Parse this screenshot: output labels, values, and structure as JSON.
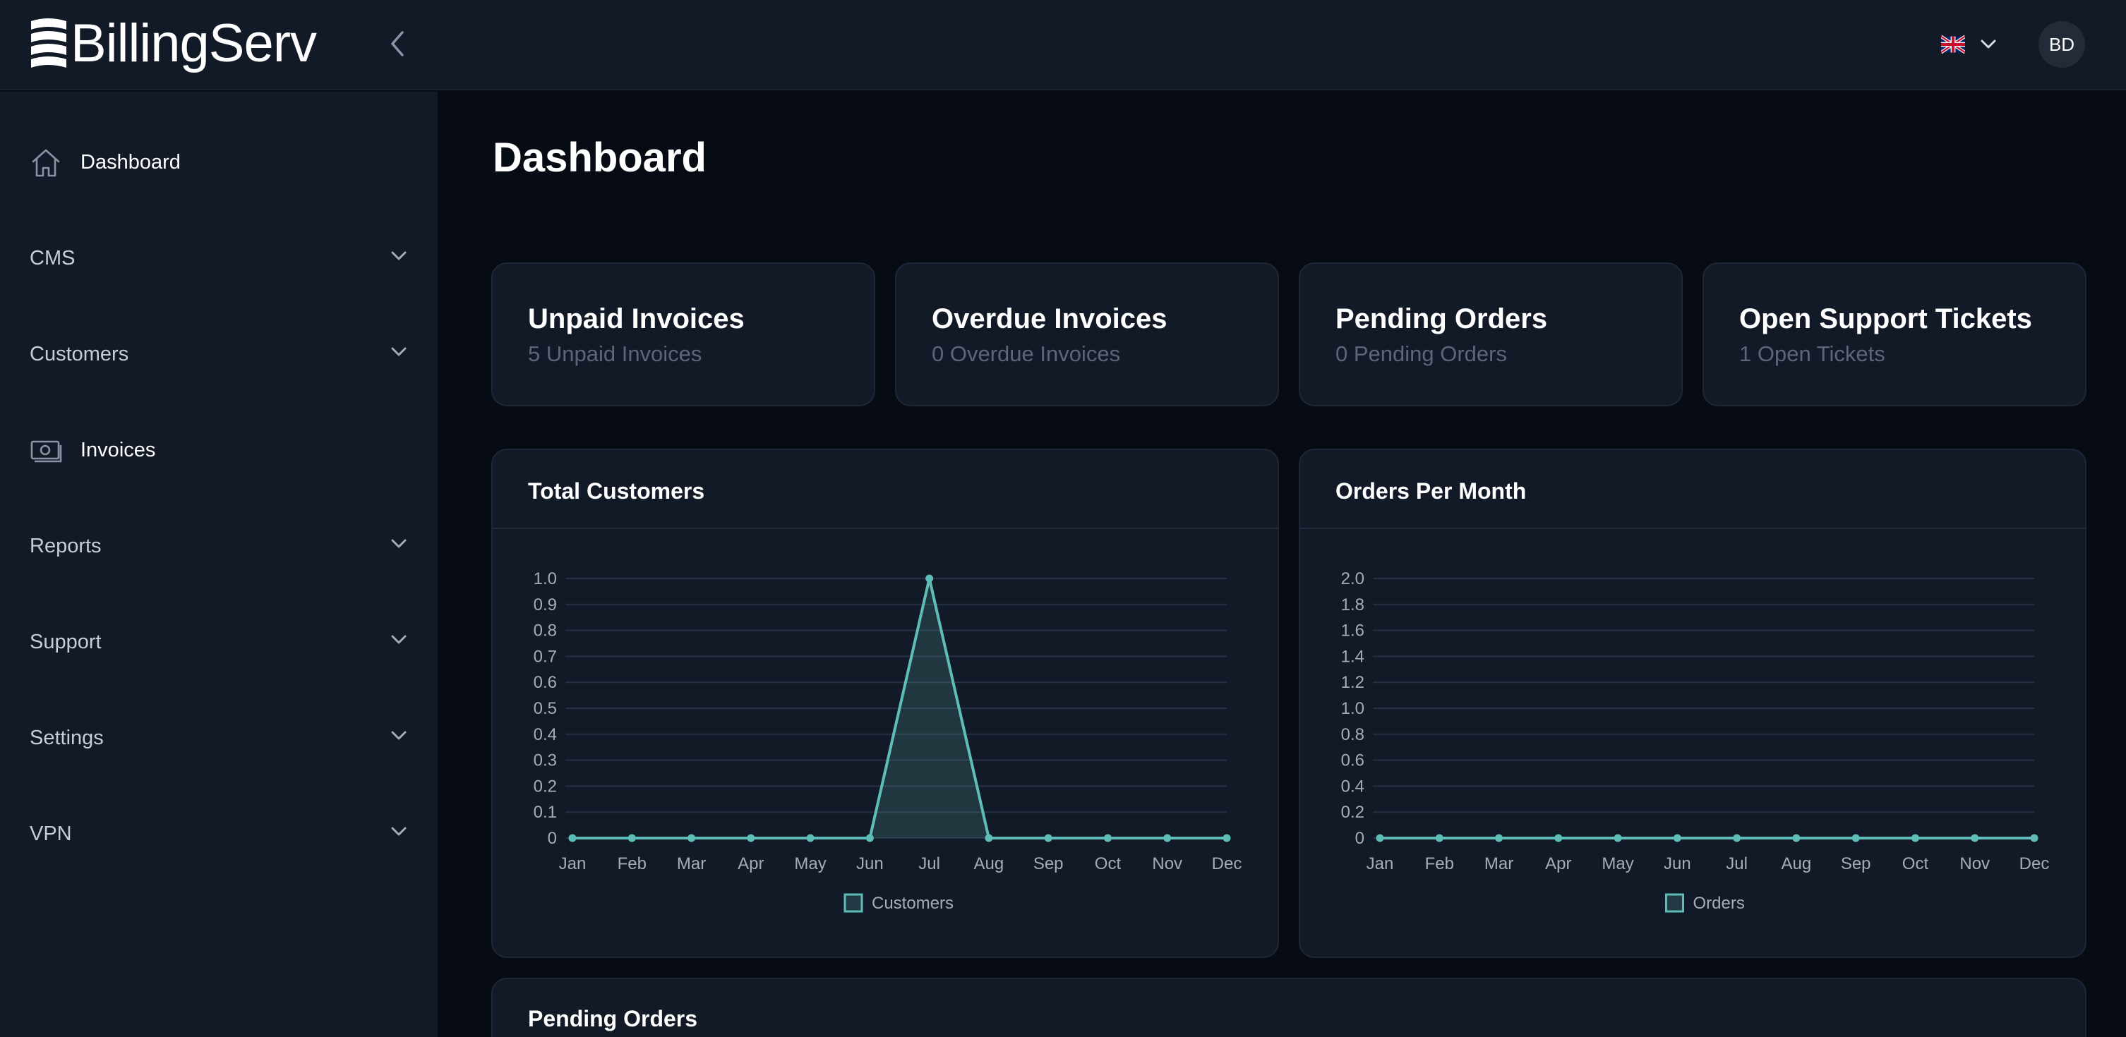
{
  "app": {
    "name": "BillingServ",
    "user_initials": "BD"
  },
  "sidebar": {
    "items": [
      {
        "label": "Dashboard",
        "icon": "home-icon",
        "expandable": false
      },
      {
        "label": "CMS",
        "expandable": true
      },
      {
        "label": "Customers",
        "expandable": true
      },
      {
        "label": "Invoices",
        "icon": "invoice-icon",
        "expandable": false
      },
      {
        "label": "Reports",
        "expandable": true
      },
      {
        "label": "Support",
        "expandable": true
      },
      {
        "label": "Settings",
        "expandable": true
      },
      {
        "label": "VPN",
        "expandable": true
      }
    ]
  },
  "page": {
    "title": "Dashboard"
  },
  "stats": [
    {
      "title": "Unpaid Invoices",
      "subtitle": "5 Unpaid Invoices"
    },
    {
      "title": "Overdue Invoices",
      "subtitle": "0 Overdue Invoices"
    },
    {
      "title": "Pending Orders",
      "subtitle": "0 Pending Orders"
    },
    {
      "title": "Open Support Tickets",
      "subtitle": "1 Open Tickets"
    }
  ],
  "charts": {
    "customers_title": "Total Customers",
    "orders_title": "Orders Per Month"
  },
  "pending_section": {
    "title": "Pending Orders"
  },
  "colors": {
    "accent": "#5fbdb7",
    "card_bg": "#131a27",
    "page_bg": "#070b14"
  },
  "chart_data": [
    {
      "type": "area",
      "title": "Total Customers",
      "categories": [
        "Jan",
        "Feb",
        "Mar",
        "Apr",
        "May",
        "Jun",
        "Jul",
        "Aug",
        "Sep",
        "Oct",
        "Nov",
        "Dec"
      ],
      "series": [
        {
          "name": "Customers",
          "values": [
            0,
            0,
            0,
            0,
            0,
            0,
            1,
            0,
            0,
            0,
            0,
            0
          ]
        }
      ],
      "ylim": [
        0,
        1.0
      ],
      "yticks": [
        0,
        0.1,
        0.2,
        0.3,
        0.4,
        0.5,
        0.6,
        0.7,
        0.8,
        0.9,
        1.0
      ],
      "ytick_labels": [
        "0",
        "0.1",
        "0.2",
        "0.3",
        "0.4",
        "0.5",
        "0.6",
        "0.7",
        "0.8",
        "0.9",
        "1.0"
      ],
      "grid": true,
      "legend": "bottom"
    },
    {
      "type": "line",
      "title": "Orders Per Month",
      "categories": [
        "Jan",
        "Feb",
        "Mar",
        "Apr",
        "May",
        "Jun",
        "Jul",
        "Aug",
        "Sep",
        "Oct",
        "Nov",
        "Dec"
      ],
      "series": [
        {
          "name": "Orders",
          "values": [
            0,
            0,
            0,
            0,
            0,
            0,
            0,
            0,
            0,
            0,
            0,
            0
          ]
        }
      ],
      "ylim": [
        0,
        2.0
      ],
      "yticks": [
        0,
        0.2,
        0.4,
        0.6,
        0.8,
        1.0,
        1.2,
        1.4,
        1.6,
        1.8,
        2.0
      ],
      "ytick_labels": [
        "0",
        "0.2",
        "0.4",
        "0.6",
        "0.8",
        "1.0",
        "1.2",
        "1.4",
        "1.6",
        "1.8",
        "2.0"
      ],
      "grid": true,
      "legend": "bottom"
    }
  ]
}
